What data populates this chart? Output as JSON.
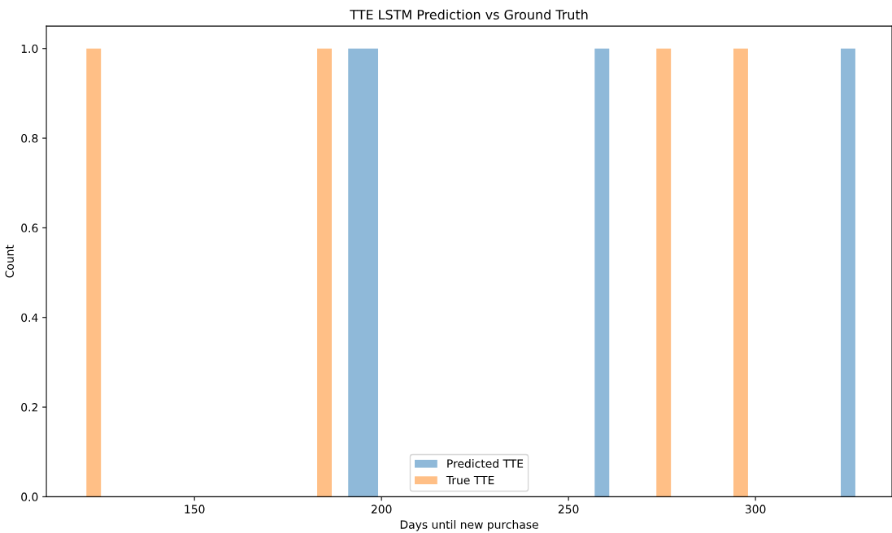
{
  "chart_data": {
    "type": "histogram",
    "title": "TTE LSTM Prediction vs Ground Truth",
    "xlabel": "Days until new purchase",
    "ylabel": "Count",
    "bins": [
      121.1,
      125.0,
      182.8,
      186.7,
      191.1,
      199.1,
      257.0,
      260.9,
      273.5,
      277.4,
      294.1,
      298.0,
      322.8,
      326.7
    ],
    "series": [
      {
        "name": "Predicted TTE",
        "color": "#8fb9d9",
        "values": [
          0,
          0,
          0,
          0,
          1,
          0,
          1,
          0,
          0,
          0,
          0,
          0,
          1
        ]
      },
      {
        "name": "True TTE",
        "color": "#ffbf86",
        "values": [
          1,
          0,
          1,
          0,
          0,
          0,
          0,
          0,
          1,
          0,
          1,
          0,
          0
        ]
      }
    ],
    "xlim": [
      110.4,
      336.5
    ],
    "ylim": [
      0,
      1.05
    ],
    "xticks": [
      150,
      200,
      250,
      300
    ],
    "yticks": [
      {
        "value": 0,
        "label": "0.0"
      },
      {
        "value": 0.2,
        "label": "0.2"
      },
      {
        "value": 0.4,
        "label": "0.4"
      },
      {
        "value": 0.6,
        "label": "0.6"
      },
      {
        "value": 0.8,
        "label": "0.8"
      },
      {
        "value": 1.0,
        "label": "1.0"
      }
    ],
    "grid": false,
    "legend": "bottom"
  }
}
